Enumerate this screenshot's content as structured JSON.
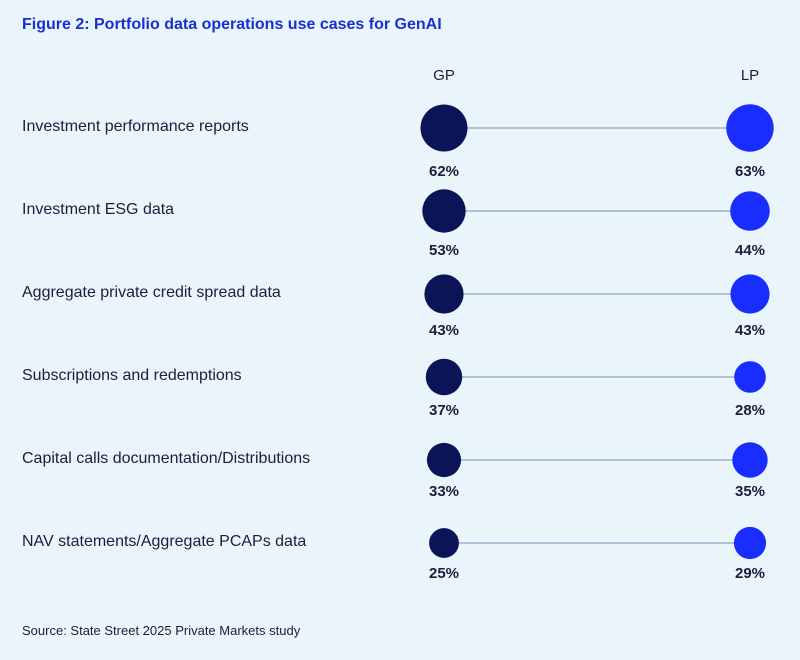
{
  "title": "Figure 2: Portfolio data operations use cases for GenAI",
  "source": "Source: State Street 2025 Private Markets study",
  "colors": {
    "gp": "#0b1456",
    "lp": "#1a2dff",
    "line": "#7d8ab0",
    "title": "#1a2fd0"
  },
  "chart_data": {
    "type": "dumbbell",
    "title": "Figure 2: Portfolio data operations use cases for GenAI",
    "categories": [
      "Investment performance reports",
      "Investment ESG data",
      "Aggregate private credit spread data",
      "Subscriptions and redemptions",
      "Capital calls documentation/Distributions",
      "NAV statements/Aggregate PCAPs data"
    ],
    "series": [
      {
        "name": "GP",
        "values": [
          62,
          53,
          43,
          37,
          33,
          25
        ],
        "labels": [
          "62%",
          "53%",
          "43%",
          "37%",
          "33%",
          "25%"
        ]
      },
      {
        "name": "LP",
        "values": [
          63,
          44,
          43,
          28,
          35,
          29
        ],
        "labels": [
          "63%",
          "44%",
          "43%",
          "28%",
          "35%",
          "29%"
        ]
      }
    ],
    "unit": "%"
  }
}
